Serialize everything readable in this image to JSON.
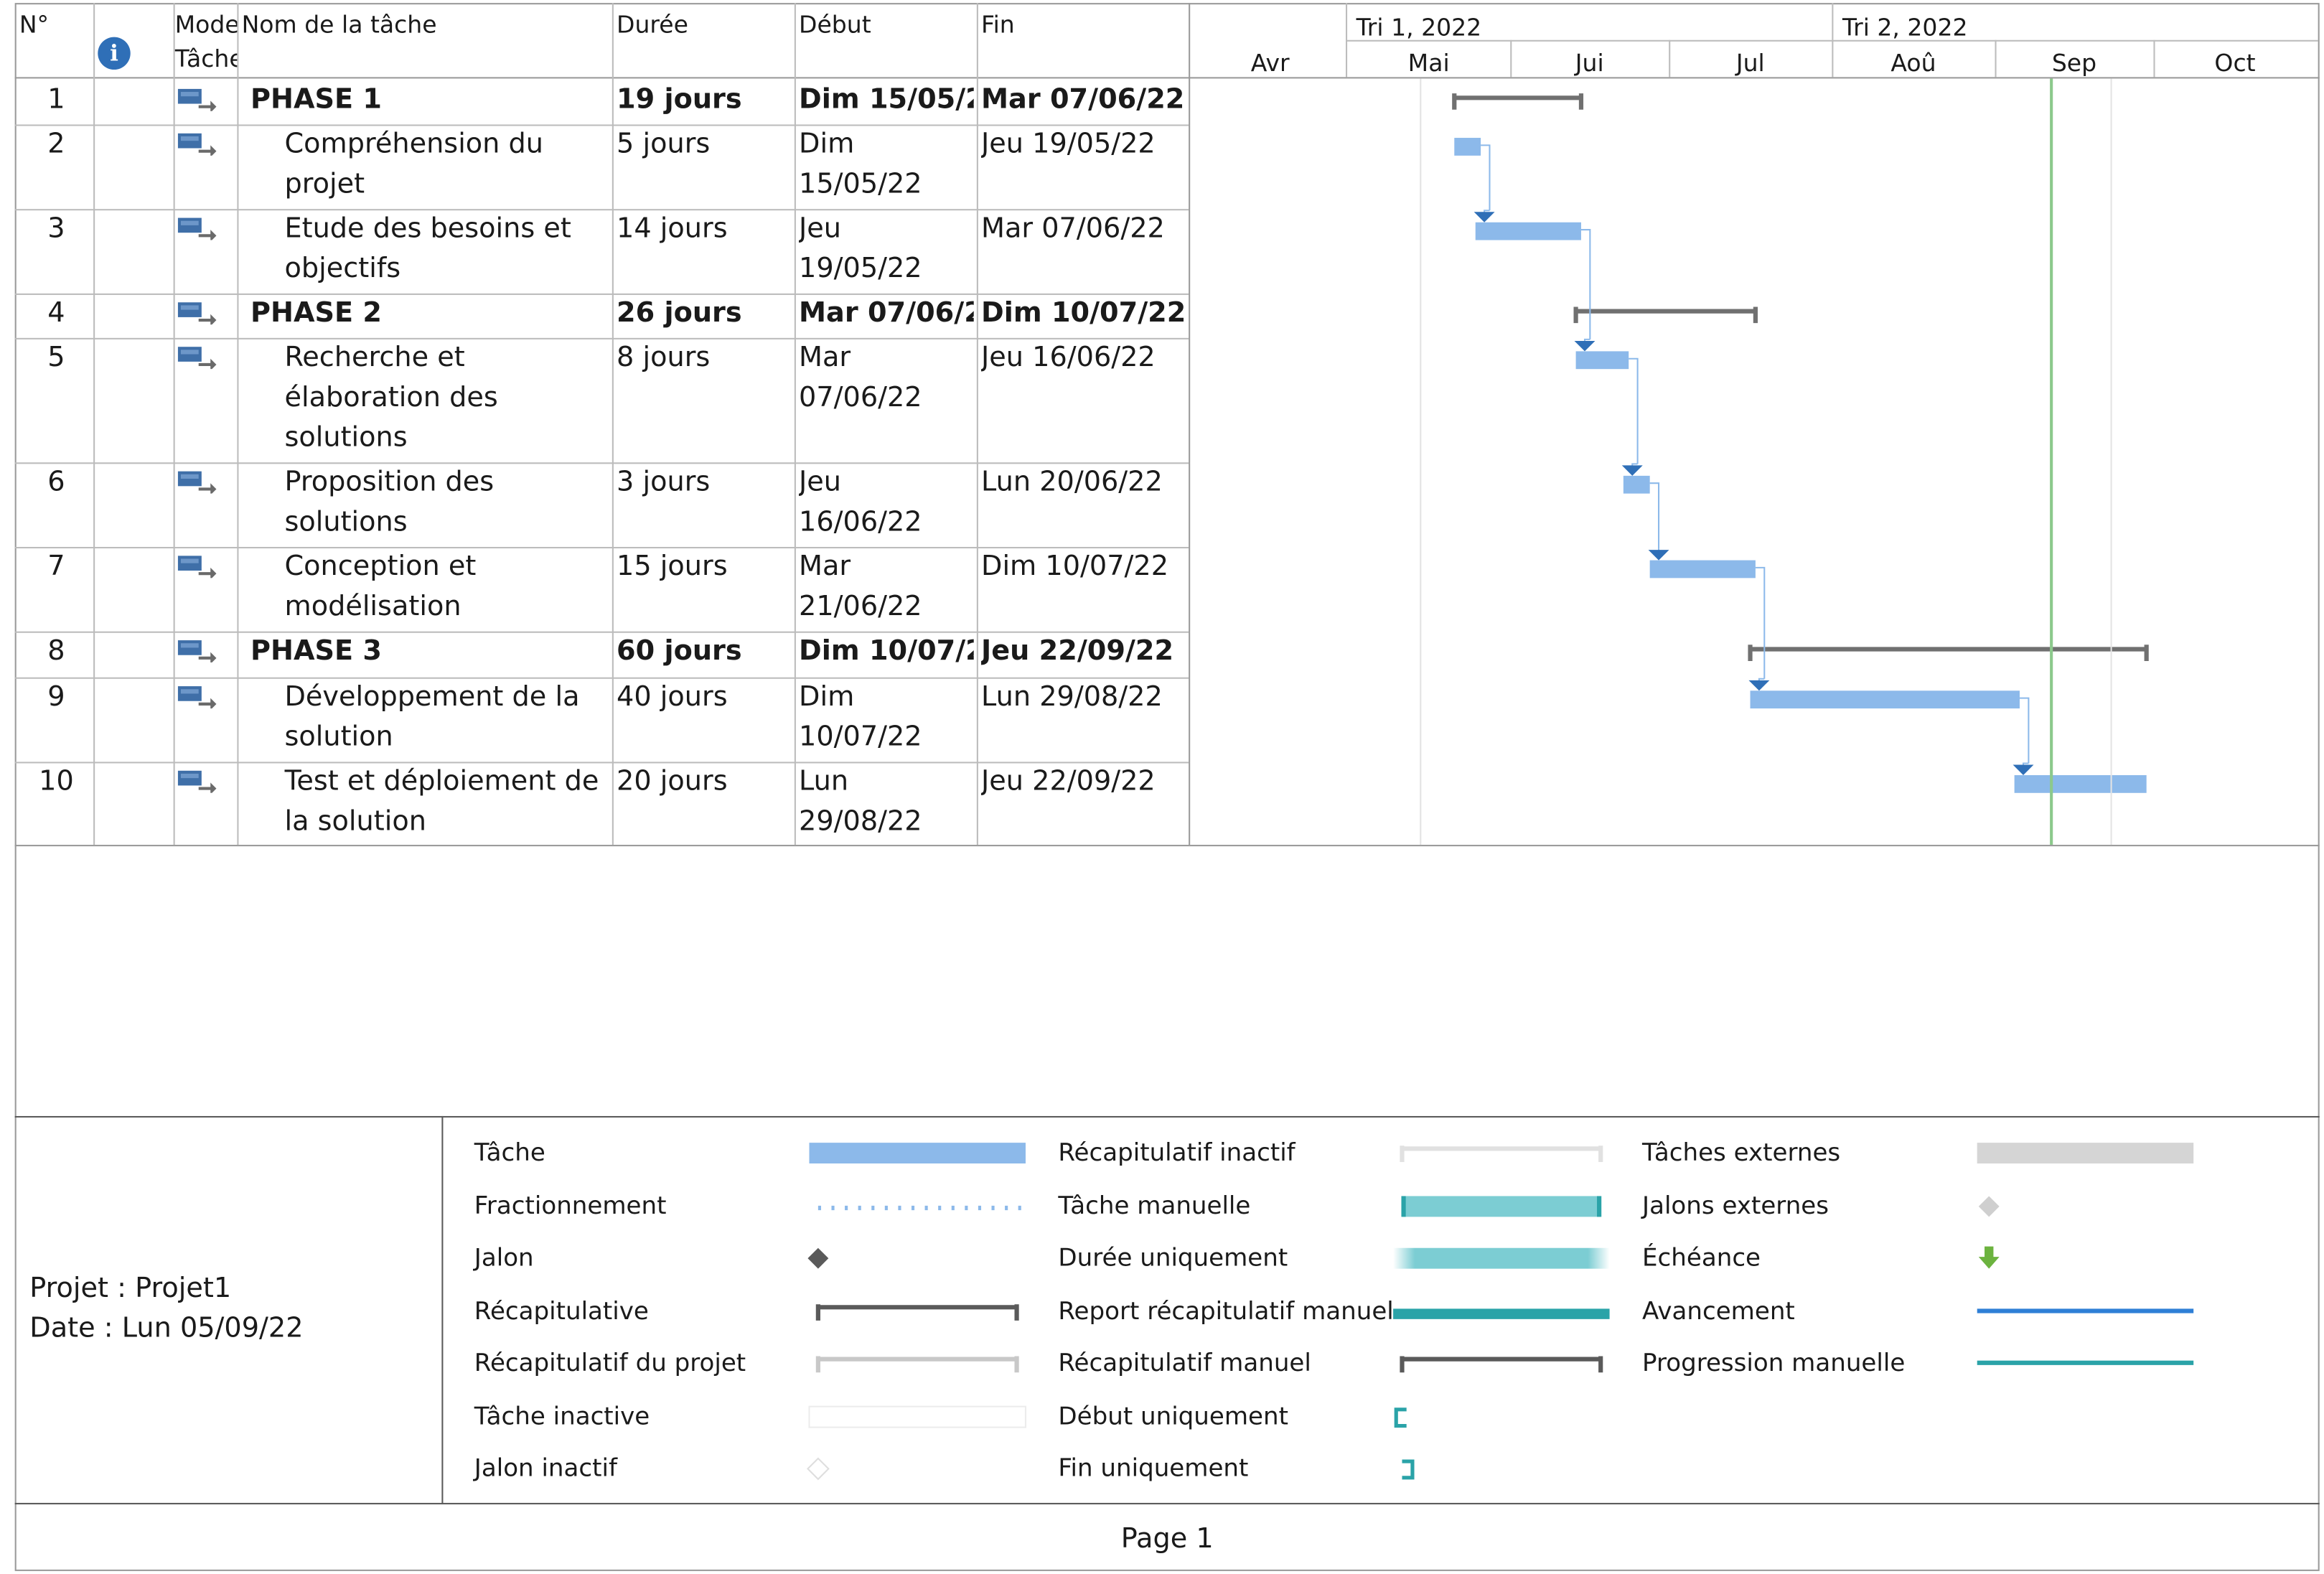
{
  "columns": {
    "id": "N°",
    "mode": "Mode\nTâche",
    "name": "Nom de la tâche",
    "duration": "Durée",
    "start": "Début",
    "finish": "Fin"
  },
  "timescale": {
    "quarters": [
      "Tri 1, 2022",
      "Tri 2, 2022"
    ],
    "months": [
      "Avr",
      "Mai",
      "Jui",
      "Jul",
      "Aoû",
      "Sep",
      "Oct"
    ]
  },
  "tasks": [
    {
      "id": "1",
      "name": [
        "PHASE 1"
      ],
      "duration": "19 jours",
      "start": [
        "Dim 15/05/2"
      ],
      "finish": "Mar 07/06/22",
      "summary": true
    },
    {
      "id": "2",
      "name": [
        "Compréhension du",
        "projet"
      ],
      "duration": "5 jours",
      "start": [
        "Dim",
        "15/05/22"
      ],
      "finish": "Jeu 19/05/22",
      "summary": false
    },
    {
      "id": "3",
      "name": [
        "Etude des besoins et",
        "objectifs"
      ],
      "duration": "14 jours",
      "start": [
        "Jeu",
        "19/05/22"
      ],
      "finish": "Mar 07/06/22",
      "summary": false
    },
    {
      "id": "4",
      "name": [
        "PHASE 2"
      ],
      "duration": "26 jours",
      "start": [
        "Mar 07/06/2"
      ],
      "finish": "Dim 10/07/22",
      "summary": true
    },
    {
      "id": "5",
      "name": [
        "Recherche et",
        "élaboration des",
        "solutions"
      ],
      "duration": "8 jours",
      "start": [
        "Mar",
        "07/06/22"
      ],
      "finish": "Jeu 16/06/22",
      "summary": false
    },
    {
      "id": "6",
      "name": [
        "Proposition des",
        "solutions"
      ],
      "duration": "3 jours",
      "start": [
        "Jeu",
        "16/06/22"
      ],
      "finish": "Lun 20/06/22",
      "summary": false
    },
    {
      "id": "7",
      "name": [
        "Conception et",
        "modélisation"
      ],
      "duration": "15 jours",
      "start": [
        "Mar",
        "21/06/22"
      ],
      "finish": "Dim 10/07/22",
      "summary": false
    },
    {
      "id": "8",
      "name": [
        "PHASE 3"
      ],
      "duration": "60 jours",
      "start": [
        "Dim 10/07/2"
      ],
      "finish": "Jeu 22/09/22",
      "summary": true
    },
    {
      "id": "9",
      "name": [
        "Développement de la",
        "solution"
      ],
      "duration": "40 jours",
      "start": [
        "Dim",
        "10/07/22"
      ],
      "finish": "Lun 29/08/22",
      "summary": false
    },
    {
      "id": "10",
      "name": [
        "Test et déploiement de",
        "la solution"
      ],
      "duration": "20 jours",
      "start": [
        "Lun",
        "29/08/22"
      ],
      "finish": "Jeu 22/09/22",
      "summary": false
    }
  ],
  "status_date": "Lun 05/09/22",
  "footer": {
    "project": "Projet : Projet1",
    "date": "Date : Lun 05/09/22",
    "page": "Page 1"
  },
  "legend": [
    {
      "label": "Tâche",
      "symbol": "task-bar"
    },
    {
      "label": "Fractionnement",
      "symbol": "split-dots"
    },
    {
      "label": "Jalon",
      "symbol": "milestone-diamond"
    },
    {
      "label": "Récapitulative",
      "symbol": "summary-bracket"
    },
    {
      "label": "Récapitulatif du projet",
      "symbol": "project-summary-bracket"
    },
    {
      "label": "Tâche inactive",
      "symbol": "inactive-task-bar"
    },
    {
      "label": "Jalon inactif",
      "symbol": "inactive-milestone"
    },
    {
      "label": "Récapitulatif inactif",
      "symbol": "inactive-summary-bracket"
    },
    {
      "label": "Tâche manuelle",
      "symbol": "manual-task-bar"
    },
    {
      "label": "Durée uniquement",
      "symbol": "duration-only-bar"
    },
    {
      "label": "Report récapitulatif manuel",
      "symbol": "manual-rollup-line"
    },
    {
      "label": "Récapitulatif manuel",
      "symbol": "manual-summary-bracket"
    },
    {
      "label": "Début uniquement",
      "symbol": "start-only-bracket"
    },
    {
      "label": "Fin uniquement",
      "symbol": "finish-only-bracket"
    },
    {
      "label": "Tâches externes",
      "symbol": "external-task-bar"
    },
    {
      "label": "Jalons externes",
      "symbol": "external-milestone"
    },
    {
      "label": "Échéance",
      "symbol": "deadline-arrow"
    },
    {
      "label": "Avancement",
      "symbol": "progress-line"
    },
    {
      "label": "Progression manuelle",
      "symbol": "manual-progress-line"
    }
  ],
  "colors": {
    "task": "#8cb9ea",
    "summary": "#707070",
    "link": "#8cb9ea",
    "arrow": "#2f6fb7",
    "status_line": "#8cc98c",
    "teal": "#2aa3a8",
    "manual_task": "#7ccdd3",
    "deadline": "#6cb33f",
    "progress": "#2f7fd6"
  }
}
